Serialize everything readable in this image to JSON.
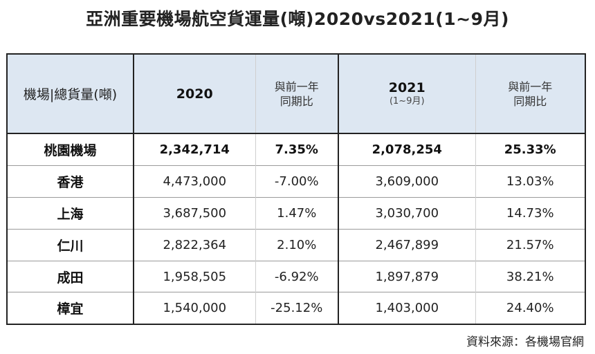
{
  "title": "亞洲重要機場航空貨運量(噸)2020vs2021(1~9月)",
  "table": {
    "headers": {
      "label": "機場|總貨量(噸)",
      "year_2020": "2020",
      "yoy_2020": [
        "與前一年",
        "同期比"
      ],
      "year_2021": "2021",
      "year_2021_sub": "(1~9月)",
      "yoy_2021": [
        "與前一年",
        "同期比"
      ]
    },
    "rows": [
      {
        "airport": "桃園機場",
        "v2020": "2,342,714",
        "yoy2020": "7.35%",
        "v2021": "2,078,254",
        "yoy2021": "25.33%"
      },
      {
        "airport": "香港",
        "v2020": "4,473,000",
        "yoy2020": "-7.00%",
        "v2021": "3,609,000",
        "yoy2021": "13.03%"
      },
      {
        "airport": "上海",
        "v2020": "3,687,500",
        "yoy2020": "1.47%",
        "v2021": "3,030,700",
        "yoy2021": "14.73%"
      },
      {
        "airport": "仁川",
        "v2020": "2,822,364",
        "yoy2020": "2.10%",
        "v2021": "2,467,899",
        "yoy2021": "21.57%"
      },
      {
        "airport": "成田",
        "v2020": "1,958,505",
        "yoy2020": "-6.92%",
        "v2021": "1,897,879",
        "yoy2021": "38.21%"
      },
      {
        "airport": "樟宜",
        "v2020": "1,540,000",
        "yoy2020": "-25.12%",
        "v2021": "1,403,000",
        "yoy2021": "24.40%"
      }
    ]
  },
  "source": "資料來源：各機場官網"
}
